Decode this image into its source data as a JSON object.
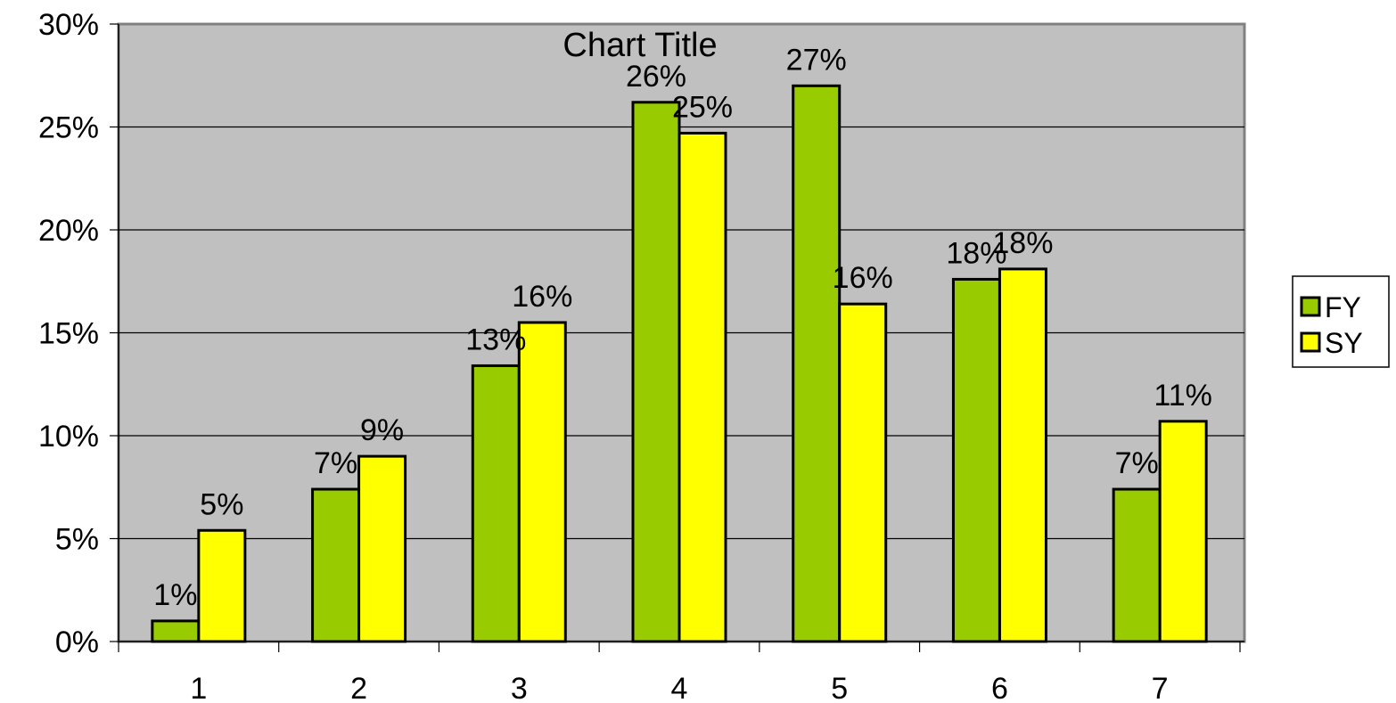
{
  "chart_data": {
    "type": "bar",
    "title": "Chart Title",
    "categories": [
      "1",
      "2",
      "3",
      "4",
      "5",
      "6",
      "7"
    ],
    "series": [
      {
        "name": "FY",
        "color": "#99cc00",
        "values": [
          1.0,
          7.4,
          13.4,
          26.2,
          27.0,
          17.6,
          7.4
        ],
        "data_labels": [
          "1%",
          "7%",
          "13%",
          "26%",
          "27%",
          "18%",
          "7%"
        ]
      },
      {
        "name": "SY",
        "color": "#ffff00",
        "values": [
          5.4,
          9.0,
          15.5,
          24.7,
          16.4,
          18.1,
          10.7
        ],
        "data_labels": [
          "5%",
          "9%",
          "16%",
          "25%",
          "16%",
          "18%",
          "11%"
        ]
      }
    ],
    "ylim": [
      0,
      30
    ],
    "y_ticks": [
      0,
      5,
      10,
      15,
      20,
      25,
      30
    ],
    "y_tick_labels": [
      "0%",
      "5%",
      "10%",
      "15%",
      "20%",
      "25%",
      "30%"
    ],
    "plot_background": "#c0c0c0",
    "grid": true,
    "legend_position": "right"
  }
}
